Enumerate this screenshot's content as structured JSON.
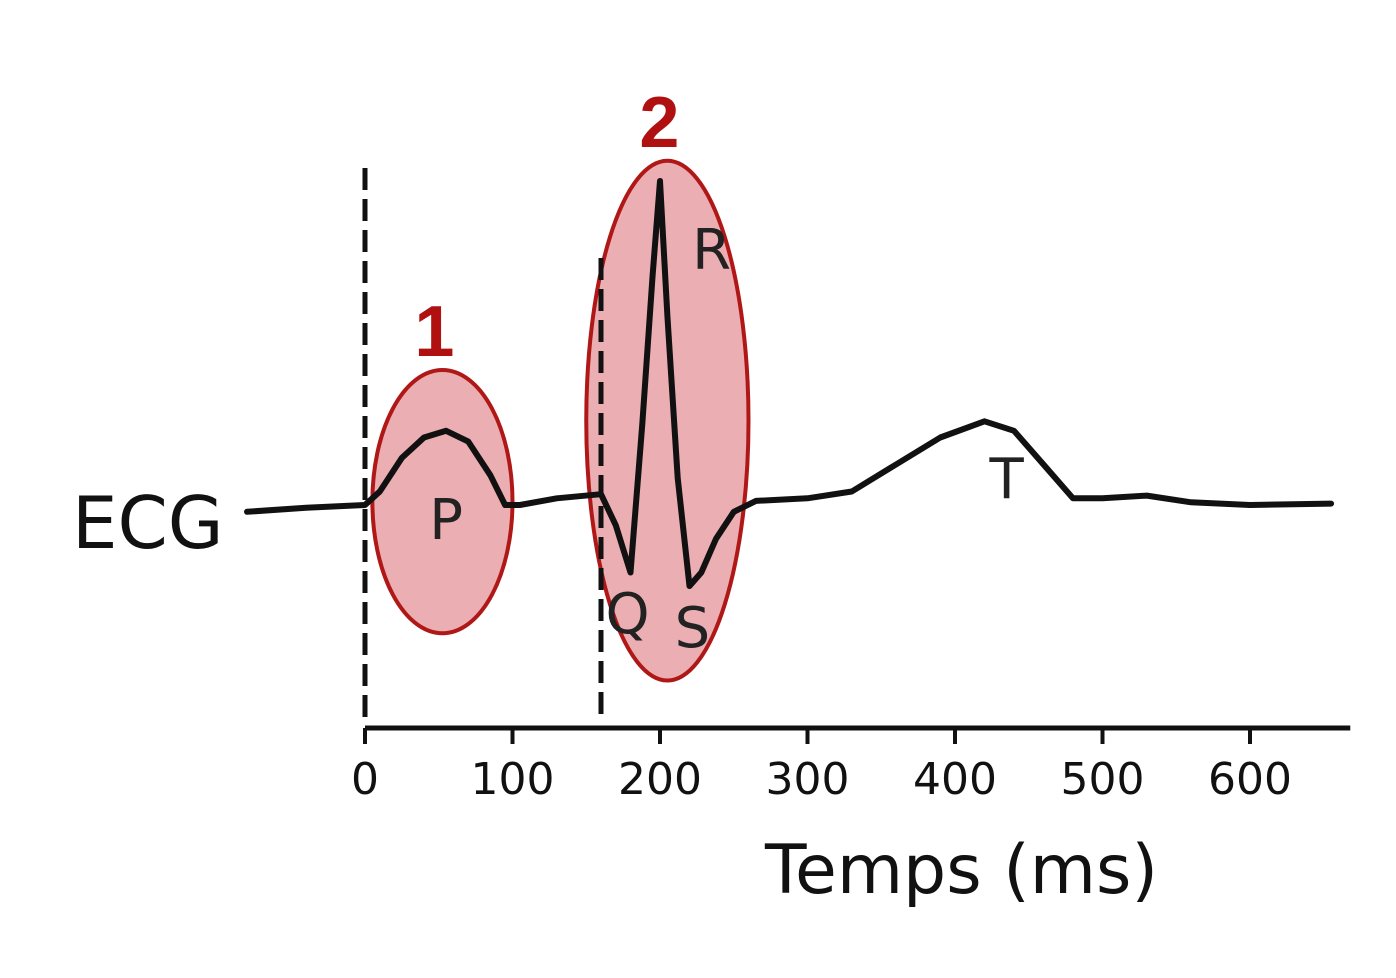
{
  "colors": {
    "background": "#ffffff",
    "trace": "#111111",
    "highlight_fill": "#e8a0a4",
    "highlight_stroke": "#b01818",
    "number": "#b01010"
  },
  "chart_data": {
    "type": "line",
    "title": "",
    "ylabel": "ECG",
    "xlabel": "Temps (ms)",
    "xlim": [
      -85,
      660
    ],
    "ylim": [
      -1.0,
      2.5
    ],
    "x_ticks": [
      0,
      100,
      200,
      300,
      400,
      500,
      600
    ],
    "x_tick_labels": [
      "0",
      "100",
      "200",
      "300",
      "400",
      "500",
      "600"
    ],
    "grid": false,
    "legend": "none",
    "series": [
      {
        "points": [
          [
            -80,
            -0.05
          ],
          [
            -40,
            -0.02
          ],
          [
            0,
            0.0
          ],
          [
            10,
            0.1
          ],
          [
            25,
            0.35
          ],
          [
            40,
            0.5
          ],
          [
            55,
            0.55
          ],
          [
            70,
            0.47
          ],
          [
            85,
            0.22
          ],
          [
            95,
            0.0
          ],
          [
            105,
            0.0
          ],
          [
            130,
            0.05
          ],
          [
            160,
            0.08
          ],
          [
            170,
            -0.15
          ],
          [
            180,
            -0.5
          ],
          [
            188,
            0.6
          ],
          [
            195,
            1.7
          ],
          [
            200,
            2.4
          ],
          [
            205,
            1.4
          ],
          [
            212,
            0.2
          ],
          [
            220,
            -0.6
          ],
          [
            228,
            -0.5
          ],
          [
            238,
            -0.25
          ],
          [
            250,
            -0.05
          ],
          [
            265,
            0.03
          ],
          [
            300,
            0.05
          ],
          [
            330,
            0.1
          ],
          [
            360,
            0.3
          ],
          [
            390,
            0.5
          ],
          [
            420,
            0.62
          ],
          [
            440,
            0.55
          ],
          [
            460,
            0.3
          ],
          [
            480,
            0.05
          ],
          [
            500,
            0.05
          ],
          [
            530,
            0.07
          ],
          [
            560,
            0.02
          ],
          [
            600,
            0.0
          ],
          [
            655,
            0.01
          ]
        ]
      }
    ],
    "markers": [
      {
        "x": 0,
        "style": "dashed"
      },
      {
        "x": 160,
        "style": "dashed"
      }
    ],
    "wave_labels": [
      {
        "text": "P",
        "x": 55,
        "y": -0.25
      },
      {
        "text": "Q",
        "x": 178,
        "y": -0.95
      },
      {
        "text": "R",
        "x": 235,
        "y": 1.75
      },
      {
        "text": "S",
        "x": 222,
        "y": -1.05
      },
      {
        "text": "T",
        "x": 435,
        "y": 0.05
      }
    ],
    "highlight_regions": [
      {
        "label": "1",
        "x_range": [
          5,
          100
        ],
        "y_range": [
          -0.95,
          1.0
        ]
      },
      {
        "label": "2",
        "x_range": [
          150,
          260
        ],
        "y_range": [
          -1.3,
          2.55
        ]
      }
    ]
  }
}
